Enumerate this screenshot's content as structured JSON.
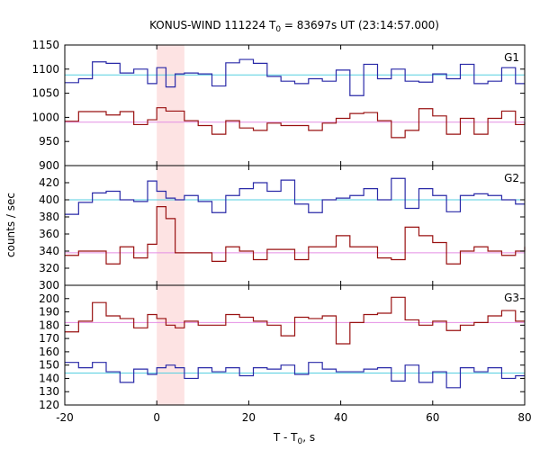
{
  "chart_data": {
    "type": "line",
    "title": {
      "prefix": "KONUS-WIND 111224 T",
      "sub": "0",
      "suffix": " = 83697s UT (23:14:57.000)"
    },
    "xlabel": {
      "prefix": "T - T",
      "sub": "0",
      "suffix": ", s"
    },
    "ylabel": "counts / sec",
    "xlim": [
      -20,
      80
    ],
    "xticks": [
      "-20",
      "0",
      "20",
      "40",
      "60",
      "80"
    ],
    "highlight_interval": [
      0,
      6
    ],
    "highlight_color": "#fde3e3",
    "colors": {
      "blue_series": "#2a2aa8",
      "red_series": "#991111",
      "blue_bg": "#55cfe0",
      "red_bg": "#e48ee4"
    },
    "panels": [
      {
        "label": "G1",
        "ylim": [
          900,
          1150
        ],
        "yticks": [
          "900",
          "950",
          "1000",
          "1050",
          "1100",
          "1150"
        ],
        "background_levels": [
          1088,
          990
        ],
        "series": [
          {
            "color_key": "blue_series",
            "x": [
              -20,
              -17,
              -14,
              -11,
              -8,
              -5,
              -2,
              0,
              2,
              4,
              6,
              9,
              12,
              15,
              18,
              21,
              24,
              27,
              30,
              33,
              36,
              39,
              42,
              45,
              48,
              51,
              54,
              57,
              60,
              63,
              66,
              69,
              72,
              75,
              78,
              80
            ],
            "y": [
              1072,
              1080,
              1115,
              1112,
              1092,
              1100,
              1070,
              1103,
              1063,
              1090,
              1092,
              1090,
              1065,
              1113,
              1120,
              1112,
              1085,
              1075,
              1070,
              1080,
              1075,
              1098,
              1045,
              1110,
              1080,
              1100,
              1075,
              1073,
              1090,
              1080,
              1110,
              1070,
              1075,
              1103,
              1070,
              1070
            ]
          },
          {
            "color_key": "red_series",
            "x": [
              -20,
              -17,
              -14,
              -11,
              -8,
              -5,
              -2,
              0,
              2,
              4,
              6,
              9,
              12,
              15,
              18,
              21,
              24,
              27,
              30,
              33,
              36,
              39,
              42,
              45,
              48,
              51,
              54,
              57,
              60,
              63,
              66,
              69,
              72,
              75,
              78,
              80
            ],
            "y": [
              992,
              1012,
              1012,
              1005,
              1012,
              985,
              995,
              1020,
              1013,
              1013,
              993,
              983,
              965,
              993,
              978,
              973,
              988,
              983,
              983,
              973,
              988,
              998,
              1008,
              1010,
              993,
              958,
              973,
              1018,
              1003,
              965,
              998,
              965,
              998,
              1013,
              985,
              990
            ]
          }
        ]
      },
      {
        "label": "G2",
        "ylim": [
          300,
          440
        ],
        "yticks": [
          "300",
          "320",
          "340",
          "360",
          "380",
          "400",
          "420"
        ],
        "background_levels": [
          400,
          338
        ],
        "series": [
          {
            "color_key": "blue_series",
            "x": [
              -20,
              -17,
              -14,
              -11,
              -8,
              -5,
              -2,
              0,
              2,
              4,
              6,
              9,
              12,
              15,
              18,
              21,
              24,
              27,
              30,
              33,
              36,
              39,
              42,
              45,
              48,
              51,
              54,
              57,
              60,
              63,
              66,
              69,
              72,
              75,
              78,
              80
            ],
            "y": [
              383,
              397,
              408,
              410,
              400,
              398,
              422,
              410,
              402,
              400,
              405,
              398,
              385,
              405,
              413,
              420,
              410,
              423,
              395,
              385,
              400,
              402,
              405,
              413,
              400,
              425,
              390,
              413,
              405,
              386,
              405,
              407,
              405,
              400,
              395,
              395
            ]
          },
          {
            "color_key": "red_series",
            "x": [
              -20,
              -17,
              -14,
              -11,
              -8,
              -5,
              -2,
              0,
              2,
              4,
              6,
              9,
              12,
              15,
              18,
              21,
              24,
              27,
              30,
              33,
              36,
              39,
              42,
              45,
              48,
              51,
              54,
              57,
              60,
              63,
              66,
              69,
              72,
              75,
              78,
              80
            ],
            "y": [
              335,
              340,
              340,
              325,
              345,
              332,
              348,
              392,
              378,
              338,
              338,
              338,
              328,
              345,
              340,
              330,
              342,
              342,
              330,
              345,
              345,
              358,
              345,
              345,
              332,
              330,
              368,
              358,
              350,
              325,
              340,
              345,
              340,
              335,
              340,
              345
            ]
          }
        ]
      },
      {
        "label": "G3",
        "ylim": [
          120,
          210
        ],
        "yticks": [
          "120",
          "130",
          "140",
          "150",
          "160",
          "170",
          "180",
          "190",
          "200"
        ],
        "background_levels": [
          182,
          144
        ],
        "series": [
          {
            "color_key": "red_series",
            "x": [
              -20,
              -17,
              -14,
              -11,
              -8,
              -5,
              -2,
              0,
              2,
              4,
              6,
              9,
              12,
              15,
              18,
              21,
              24,
              27,
              30,
              33,
              36,
              39,
              42,
              45,
              48,
              51,
              54,
              57,
              60,
              63,
              66,
              69,
              72,
              75,
              78,
              80
            ],
            "y": [
              175,
              183,
              197,
              187,
              185,
              178,
              188,
              185,
              180,
              178,
              183,
              180,
              180,
              188,
              186,
              183,
              180,
              172,
              186,
              185,
              187,
              166,
              182,
              188,
              189,
              201,
              184,
              180,
              183,
              176,
              180,
              182,
              187,
              191,
              183,
              183
            ]
          },
          {
            "color_key": "blue_series",
            "x": [
              -20,
              -17,
              -14,
              -11,
              -8,
              -5,
              -2,
              0,
              2,
              4,
              6,
              9,
              12,
              15,
              18,
              21,
              24,
              27,
              30,
              33,
              36,
              39,
              42,
              45,
              48,
              51,
              54,
              57,
              60,
              63,
              66,
              69,
              72,
              75,
              78,
              80
            ],
            "y": [
              152,
              148,
              152,
              145,
              137,
              147,
              143,
              148,
              150,
              148,
              140,
              148,
              145,
              148,
              142,
              148,
              147,
              150,
              143,
              152,
              147,
              145,
              145,
              147,
              148,
              138,
              150,
              137,
              145,
              133,
              148,
              145,
              148,
              140,
              142,
              142
            ]
          }
        ]
      }
    ]
  }
}
